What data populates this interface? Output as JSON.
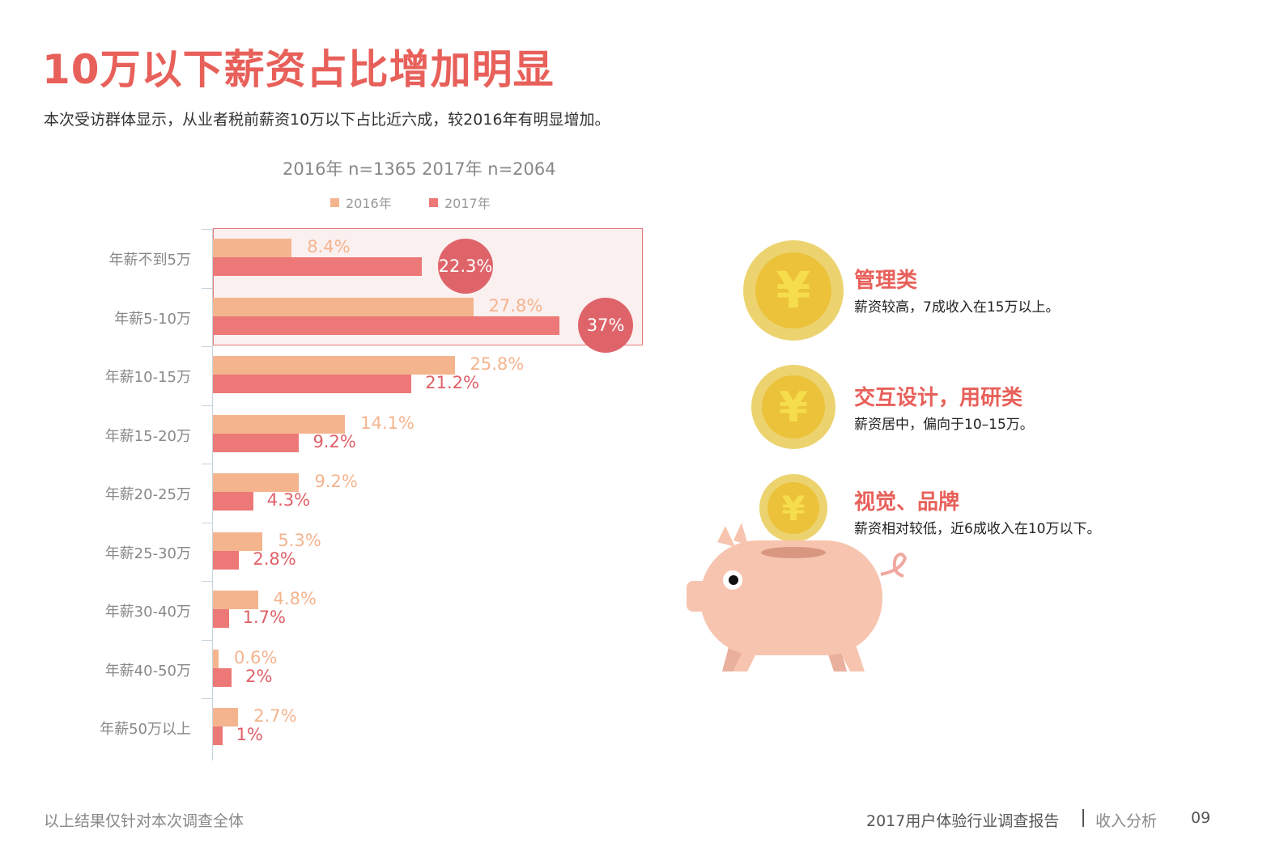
{
  "header": {
    "title": "10万以下薪资占比增加明显",
    "subtitle": "本次受访群体显示，从业者税前薪资10万以下占比近六成，较2016年有明显增加。"
  },
  "chart_data": {
    "type": "bar",
    "orientation": "horizontal",
    "title": "2016年 n=1365  2017年 n=2064",
    "categories": [
      "年薪不到5万",
      "年薪5-10万",
      "年薪10-15万",
      "年薪15-20万",
      "年薪20-25万",
      "年薪25-30万",
      "年薪30-40万",
      "年薪40-50万",
      "年薪50万以上"
    ],
    "series": [
      {
        "name": "2016年",
        "color": "#f4b48e",
        "values": [
          8.4,
          27.8,
          25.8,
          14.1,
          9.2,
          5.3,
          4.8,
          0.6,
          2.7
        ],
        "labels": [
          "8.4%",
          "27.8%",
          "25.8%",
          "14.1%",
          "9.2%",
          "5.3%",
          "4.8%",
          "0.6%",
          "2.7%"
        ]
      },
      {
        "name": "2017年",
        "color": "#ec7877",
        "values": [
          22.3,
          37,
          21.2,
          9.2,
          4.3,
          2.8,
          1.7,
          2,
          1
        ],
        "labels": [
          "22.3%",
          "37%",
          "21.2%",
          "9.2%",
          "4.3%",
          "2.8%",
          "1.7%",
          "2%",
          "1%"
        ]
      }
    ],
    "highlighted_categories": [
      "年薪不到5万",
      "年薪5-10万"
    ],
    "legend": "top",
    "grid": false
  },
  "notes": [
    {
      "title": "管理类",
      "text": "薪资较高，7成收入在15万以上。",
      "icon": "yuan-coin-icon"
    },
    {
      "title": "交互设计，用研类",
      "text": "薪资居中，偏向于10–15万。",
      "icon": "yuan-coin-icon"
    },
    {
      "title": "视觉、品牌",
      "text": "薪资相对较低，近6成收入在10万以下。",
      "icon": "yuan-coin-icon"
    }
  ],
  "coin_symbol": "¥",
  "footer": {
    "left": "以上结果仅针对本次调查全体",
    "report": "2017用户体验行业调查报告",
    "section": "收入分析",
    "page": "09"
  }
}
